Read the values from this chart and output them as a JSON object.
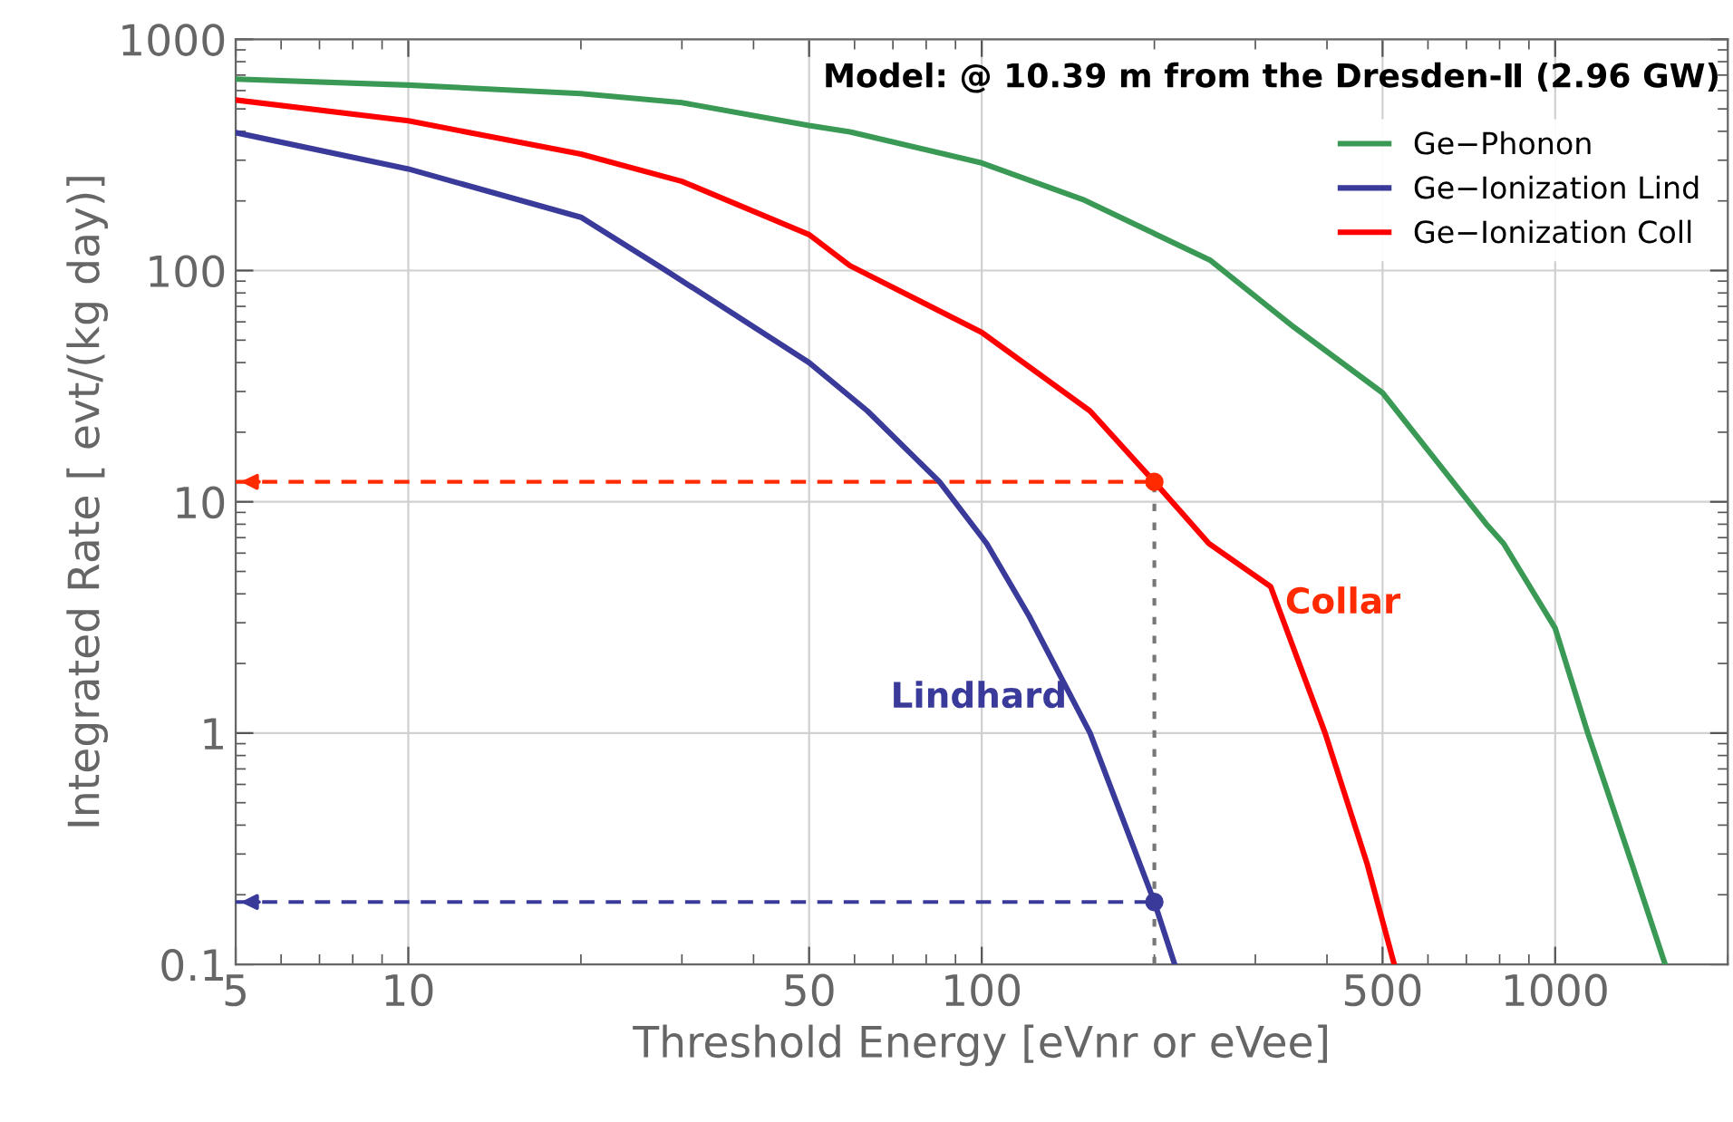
{
  "chart_data": {
    "type": "line",
    "title": "Model: @ 10.39 m from the Dresden-Ⅱ (2.96 GW)",
    "xlabel": "Threshold Energy [eVnr or eVee]",
    "ylabel": "Integrated Rate [ evt/(kg day)]",
    "log": "xy",
    "xlim": [
      5,
      2000
    ],
    "ylim": [
      0.1,
      1000
    ],
    "xticks": [
      5,
      10,
      50,
      100,
      500,
      1000
    ],
    "yticks": [
      0.1,
      1,
      10,
      100,
      1000
    ],
    "grid": true,
    "legend": "top right",
    "line_style": "solid",
    "series": [
      {
        "name": "Ge−Phonon",
        "color": "#3a9a55",
        "x": [
          5,
          10,
          20,
          30,
          50,
          58.9,
          100,
          150,
          250,
          350,
          500,
          762,
          813,
          1000,
          1140,
          1361,
          1555
        ],
        "values": [
          673,
          634,
          582,
          532,
          424,
          398,
          292,
          203,
          111,
          57,
          29.6,
          7.9,
          6.6,
          2.84,
          1,
          0.272,
          0.1
        ]
      },
      {
        "name": "Ge−Ionization Lind",
        "color": "#3a3a9a",
        "x": [
          5,
          10,
          20,
          27.8,
          50,
          63.2,
          84.4,
          102,
          121,
          154.5,
          200,
          217
        ],
        "values": [
          395,
          275,
          170,
          102,
          40,
          24.7,
          12.2,
          6.6,
          3.2,
          1,
          0.186,
          0.1
        ]
      },
      {
        "name": "Ge−Ionization Coll",
        "color": "#ff0000",
        "x": [
          5,
          10,
          20,
          30,
          50,
          58.9,
          100,
          154.5,
          200,
          249,
          319,
          397,
          470,
          524
        ],
        "values": [
          546,
          444,
          319,
          243,
          143,
          105,
          54,
          24.7,
          12.2,
          6.6,
          4.3,
          1,
          0.272,
          0.1
        ]
      },
      {
        "type": "scatter",
        "marker": "circle",
        "color": "#ff2a00",
        "x": [
          200
        ],
        "values": [
          12.2
        ]
      },
      {
        "type": "scatter",
        "marker": "circle",
        "color": "#3a3a9a",
        "x": [
          200
        ],
        "values": [
          0.186
        ]
      }
    ],
    "ref_lines": [
      {
        "axis": "y",
        "value": 12.2,
        "color": "#ff2a00",
        "line_style": "dashed"
      },
      {
        "axis": "y",
        "value": 0.186,
        "color": "#3a3a9a",
        "line_style": "dashed"
      },
      {
        "axis": "x",
        "value": 200,
        "color": "#777777",
        "line_style": "dotted"
      }
    ],
    "annotations": [
      "Collar",
      "Lindhard"
    ]
  }
}
